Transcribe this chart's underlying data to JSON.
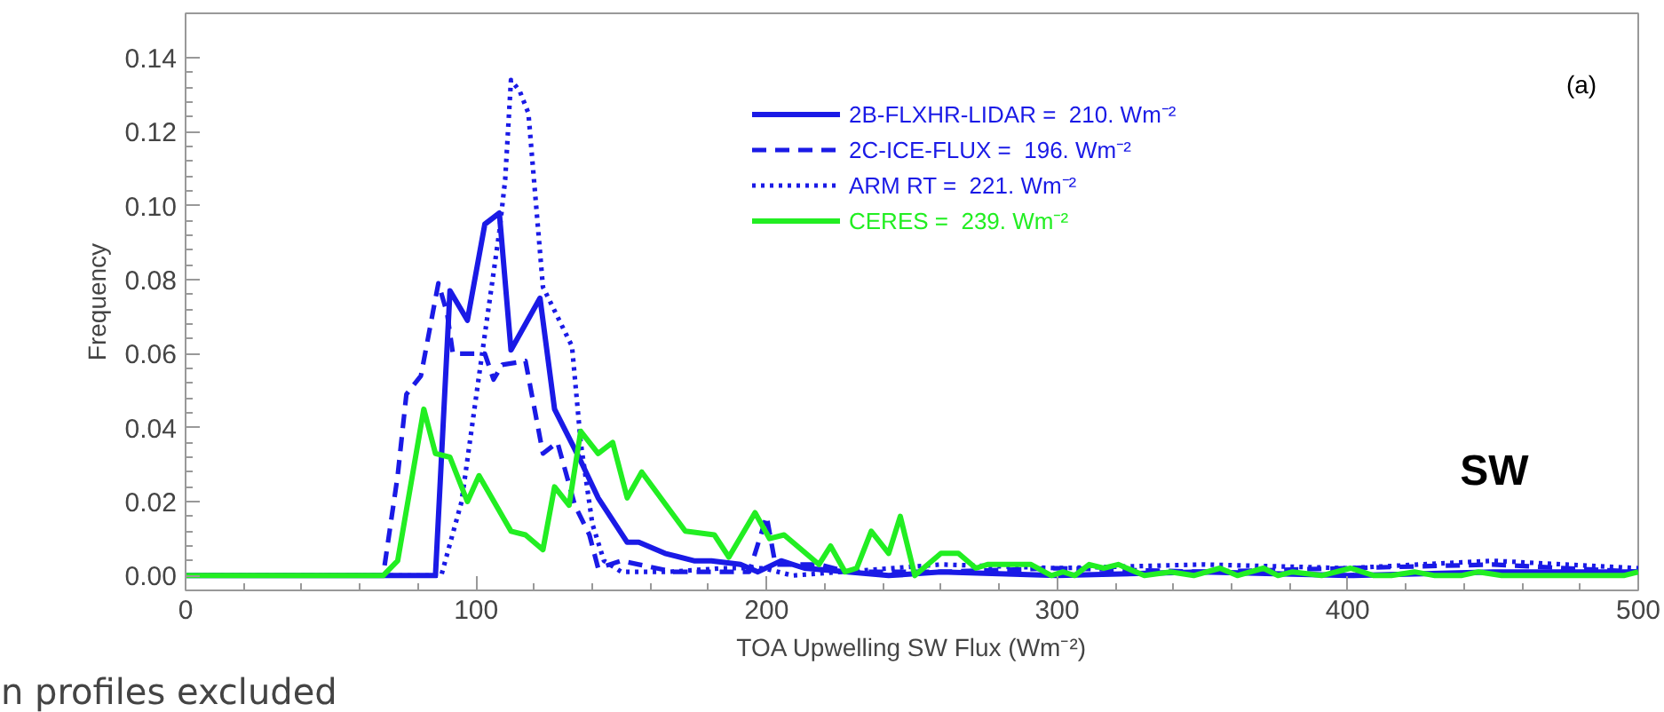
{
  "chart_data": {
    "type": "line",
    "xlabel": "TOA Upwelling SW Flux (Wm⁻²)",
    "ylabel": "Frequency",
    "xlim": [
      0,
      500
    ],
    "ylim": [
      -0.004,
      0.152
    ],
    "xticks": [
      0,
      100,
      200,
      300,
      400,
      500
    ],
    "yticks": [
      {
        "value": 0,
        "label": "0.00"
      },
      {
        "value": 0.02,
        "label": "0.02"
      },
      {
        "value": 0.04,
        "label": "0.04"
      },
      {
        "value": 0.06,
        "label": "0.06"
      },
      {
        "value": 0.08,
        "label": "0.08"
      },
      {
        "value": 0.1,
        "label": "0.10"
      },
      {
        "value": 0.12,
        "label": "0.12"
      },
      {
        "value": 0.14,
        "label": "0.14"
      }
    ],
    "grid": false,
    "legend": "top",
    "marker": "none",
    "series": [
      {
        "name": "2B-FLXHR-LIDAR =  210. Wm⁻²",
        "color": "#1a1ae6",
        "line_style": "solid",
        "x": [
          0,
          86,
          91,
          97,
          103,
          108,
          112,
          122,
          127,
          136,
          142,
          147,
          152,
          156,
          165,
          175,
          181,
          191,
          197,
          205,
          213,
          228,
          242,
          260,
          300,
          350,
          400,
          450,
          500
        ],
        "values": [
          0,
          0,
          0.077,
          0.069,
          0.095,
          0.098,
          0.061,
          0.075,
          0.045,
          0.031,
          0.021,
          0.015,
          0.009,
          0.009,
          0.006,
          0.004,
          0.004,
          0.003,
          0.001,
          0.004,
          0.002,
          0.001,
          0,
          0.001,
          0,
          0.001,
          0,
          0.001,
          0.001
        ]
      },
      {
        "name": "2C-ICE-FLUX =  196. Wm⁻²",
        "color": "#1a1ae6",
        "line_style": "dashed",
        "x": [
          0,
          68,
          73,
          76,
          81,
          87,
          90,
          92,
          103,
          106,
          109,
          117,
          123,
          128,
          134,
          139,
          142,
          150,
          156,
          168,
          194,
          200,
          203,
          218,
          228,
          260,
          300,
          350,
          400,
          450,
          500
        ],
        "values": [
          0,
          0,
          0.027,
          0.049,
          0.054,
          0.079,
          0.071,
          0.06,
          0.06,
          0.053,
          0.057,
          0.058,
          0.033,
          0.036,
          0.019,
          0.011,
          0.002,
          0.004,
          0.003,
          0.001,
          0.001,
          0.016,
          0.003,
          0.003,
          0.001,
          0.001,
          0.002,
          0.001,
          0.002,
          0.003,
          0.001
        ]
      },
      {
        "name": "ARM RT =  221. Wm⁻²",
        "color": "#1a1ae6",
        "line_style": "dotted",
        "x": [
          0,
          88,
          95,
          101,
          108,
          110,
          112,
          115,
          118,
          123,
          128,
          133,
          136,
          140,
          144,
          150,
          166,
          185,
          199,
          209,
          260,
          300,
          350,
          400,
          450,
          500
        ],
        "values": [
          0,
          0,
          0.02,
          0.054,
          0.093,
          0.107,
          0.134,
          0.131,
          0.125,
          0.078,
          0.07,
          0.062,
          0.036,
          0.014,
          0.004,
          0.001,
          0.001,
          0.002,
          0.002,
          0,
          0.003,
          0.002,
          0.003,
          0.002,
          0.004,
          0.002
        ]
      },
      {
        "name": "CERES =  239. Wm⁻²",
        "color": "#22ee22",
        "line_style": "solid",
        "x": [
          0,
          68,
          73,
          82,
          86,
          91,
          97,
          101,
          112,
          117,
          123,
          127,
          132,
          136,
          142,
          147,
          152,
          157,
          172,
          182,
          187,
          196,
          201,
          206,
          218,
          222,
          227,
          231,
          236,
          242,
          246,
          251,
          260,
          266,
          272,
          276,
          291,
          298,
          302,
          306,
          311,
          316,
          321,
          330,
          339,
          347,
          356,
          362,
          371,
          376,
          381,
          391,
          401,
          409,
          415,
          423,
          430,
          439,
          445,
          453,
          465,
          479,
          489,
          495,
          500
        ],
        "values": [
          0,
          0,
          0.004,
          0.045,
          0.033,
          0.032,
          0.02,
          0.027,
          0.012,
          0.011,
          0.007,
          0.024,
          0.019,
          0.039,
          0.033,
          0.036,
          0.021,
          0.028,
          0.012,
          0.011,
          0.005,
          0.017,
          0.01,
          0.011,
          0.003,
          0.008,
          0.001,
          0.002,
          0.012,
          0.006,
          0.016,
          0,
          0.006,
          0.006,
          0.002,
          0.003,
          0.003,
          0,
          0.001,
          0,
          0.003,
          0.002,
          0.003,
          0,
          0.001,
          0,
          0.002,
          0,
          0.002,
          0,
          0.001,
          0,
          0.002,
          0,
          0,
          0.001,
          0,
          0,
          0.001,
          0,
          0,
          0,
          0,
          0,
          0.001
        ]
      }
    ],
    "annotations": [
      "(a)",
      "SW",
      "n profiles excluded"
    ]
  }
}
